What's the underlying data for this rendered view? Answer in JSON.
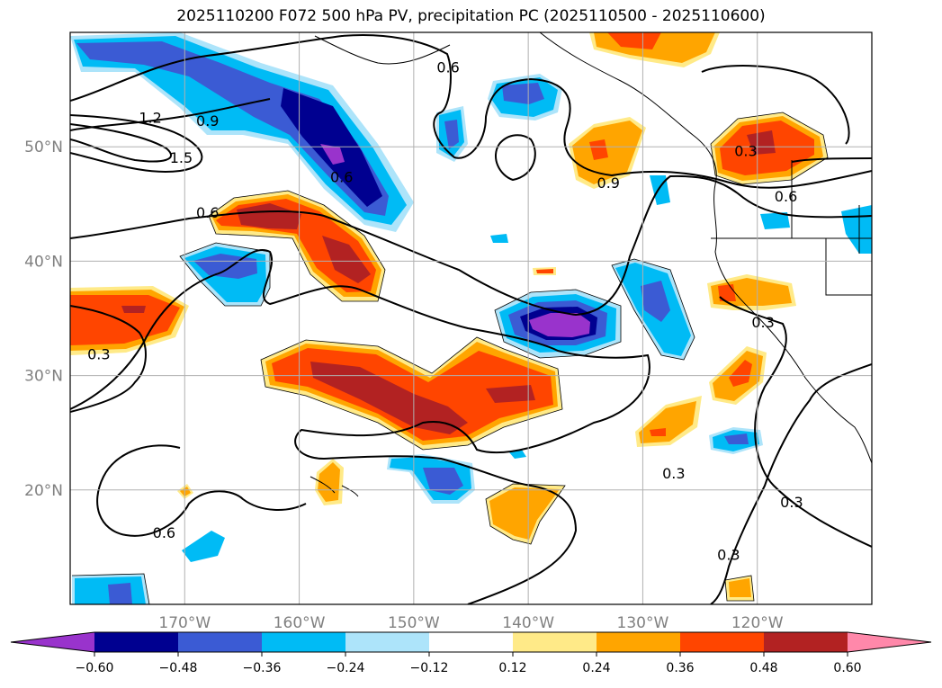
{
  "chart_data": {
    "type": "heatmap",
    "title": "2025110200 F072 500 hPa PV, precipitation PC (2025110500 - 2025110600)",
    "map_extent": {
      "lon_min": -180,
      "lon_max": -110,
      "lat_min": 10,
      "lat_max": 60
    },
    "x_ticks": [
      {
        "lon": -170,
        "label": "170°W"
      },
      {
        "lon": -160,
        "label": "160°W"
      },
      {
        "lon": -150,
        "label": "150°W"
      },
      {
        "lon": -140,
        "label": "140°W"
      },
      {
        "lon": -130,
        "label": "130°W"
      },
      {
        "lon": -120,
        "label": "120°W"
      }
    ],
    "y_ticks": [
      {
        "lat": 50,
        "label": "50°N"
      },
      {
        "lat": 40,
        "label": "40°N"
      },
      {
        "lat": 30,
        "label": "30°N"
      },
      {
        "lat": 20,
        "label": "20°N"
      }
    ],
    "colorbar": {
      "levels": [
        -0.6,
        -0.48,
        -0.36,
        -0.24,
        -0.12,
        0.12,
        0.24,
        0.36,
        0.48,
        0.6
      ],
      "tick_labels": [
        "−0.60",
        "−0.48",
        "−0.36",
        "−0.24",
        "−0.12",
        "0.12",
        "0.24",
        "0.36",
        "0.48",
        "0.60"
      ],
      "colors": [
        "#9933cc",
        "#000090",
        "#3b5bd4",
        "#00bbf5",
        "#ade4fa",
        "#ffffff",
        "#ffea88",
        "#ffa500",
        "#ff4500",
        "#b22222",
        "#ff88aa"
      ],
      "extend": "both"
    },
    "contour_labels": [
      {
        "text": "0.6",
        "lon": -156.3,
        "lat": 47.3
      },
      {
        "text": "0.6",
        "lon": -147.0,
        "lat": 56.9
      },
      {
        "text": "1.2",
        "lon": -173.0,
        "lat": 52.5
      },
      {
        "text": "0.9",
        "lon": -168.0,
        "lat": 52.2
      },
      {
        "text": "1.5",
        "lon": -170.3,
        "lat": 49.0
      },
      {
        "text": "0.6",
        "lon": -168.0,
        "lat": 44.2
      },
      {
        "text": "0.9",
        "lon": -133.0,
        "lat": 46.8
      },
      {
        "text": "0.3",
        "lon": -121.0,
        "lat": 49.6
      },
      {
        "text": "0.6",
        "lon": -117.5,
        "lat": 45.6
      },
      {
        "text": "0.3",
        "lon": -119.5,
        "lat": 34.6
      },
      {
        "text": "0.3",
        "lon": -177.5,
        "lat": 31.8
      },
      {
        "text": "0.3",
        "lon": -127.3,
        "lat": 21.4
      },
      {
        "text": "0.3",
        "lon": -117.0,
        "lat": 18.9
      },
      {
        "text": "0.3",
        "lon": -122.5,
        "lat": 14.3
      },
      {
        "text": "0.6",
        "lon": -171.8,
        "lat": 16.2
      }
    ]
  }
}
